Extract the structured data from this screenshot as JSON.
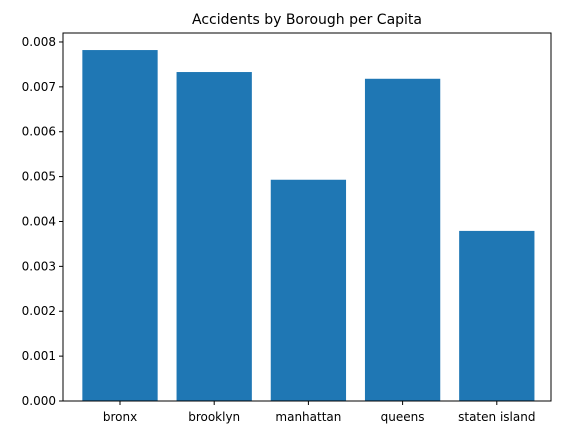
{
  "chart_data": {
    "type": "bar",
    "title": "Accidents by Borough per Capita",
    "xlabel": "",
    "ylabel": "",
    "categories": [
      "bronx",
      "brooklyn",
      "manhattan",
      "queens",
      "staten island"
    ],
    "values": [
      0.00782,
      0.00733,
      0.00493,
      0.00718,
      0.00379
    ],
    "ylim": [
      0,
      0.0082
    ],
    "yticks": [
      "0.000",
      "0.001",
      "0.002",
      "0.003",
      "0.004",
      "0.005",
      "0.006",
      "0.007",
      "0.008"
    ],
    "grid": false,
    "bar_color": "#1f77b4"
  }
}
